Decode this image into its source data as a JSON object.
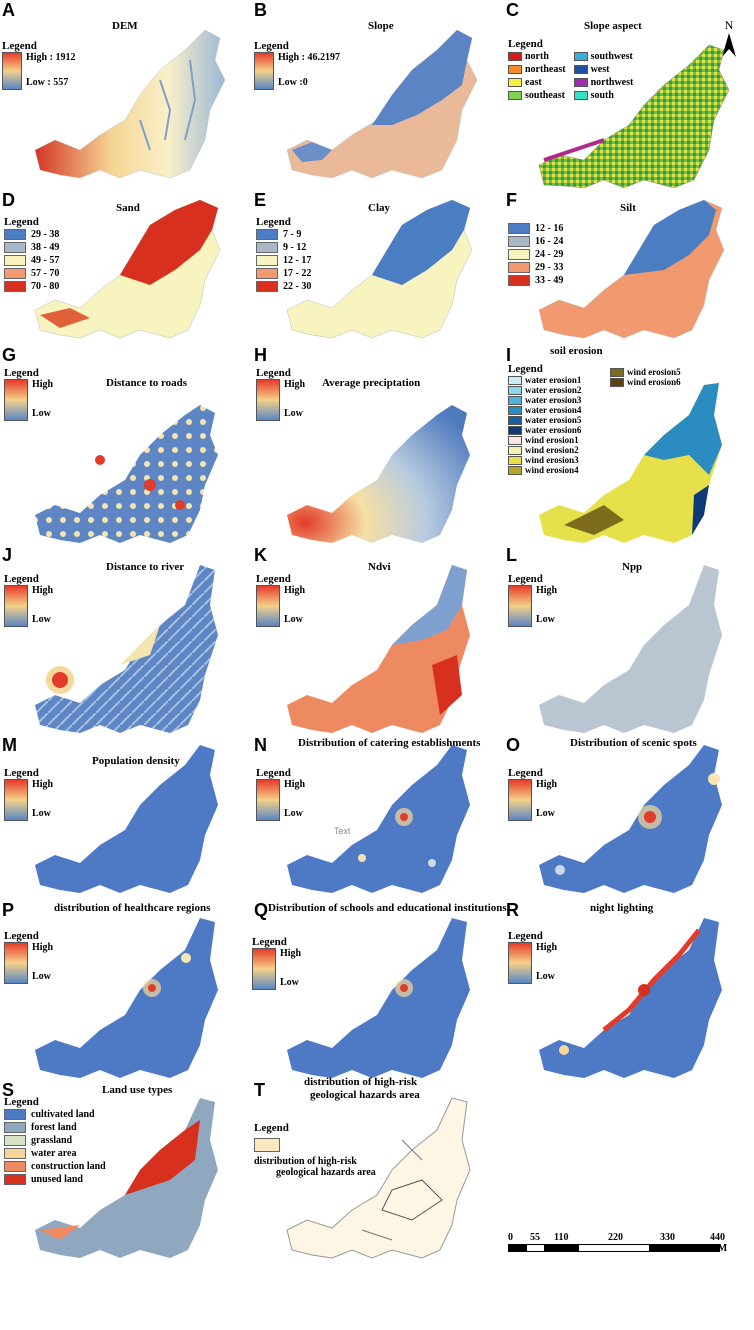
{
  "panels": {
    "A": {
      "letter": "A",
      "title": "DEM",
      "legend": "Legend",
      "high": "High : 1912",
      "low": "Low : 557"
    },
    "B": {
      "letter": "B",
      "title": "Slope",
      "legend": "Legend",
      "high": "High : 46.2197",
      "low": "Low :0"
    },
    "C": {
      "letter": "C",
      "title": "Slope aspect",
      "legend": "Legend",
      "north_label": "N",
      "items": [
        {
          "label": "north",
          "color": "#d7191c"
        },
        {
          "label": "northeast",
          "color": "#f58a2a"
        },
        {
          "label": "east",
          "color": "#f7f040"
        },
        {
          "label": "southeast",
          "color": "#7fd34e"
        },
        {
          "label": "southwest",
          "color": "#3aaed8"
        },
        {
          "label": "west",
          "color": "#1f4fa3"
        },
        {
          "label": "northwest",
          "color": "#9b2fae"
        },
        {
          "label": "south",
          "color": "#35e0c0"
        }
      ]
    },
    "D": {
      "letter": "D",
      "title": "Sand",
      "legend": "Legend",
      "items": [
        {
          "label": "29 - 38",
          "color": "#4a7dc2"
        },
        {
          "label": "38 - 49",
          "color": "#a9b8c8"
        },
        {
          "label": "49 - 57",
          "color": "#f8f4c0"
        },
        {
          "label": "57 - 70",
          "color": "#f19a6f"
        },
        {
          "label": "70 - 80",
          "color": "#d7301f"
        }
      ]
    },
    "E": {
      "letter": "E",
      "title": "Clay",
      "legend": "Legend",
      "items": [
        {
          "label": "7 - 9",
          "color": "#4a7dc2"
        },
        {
          "label": "9 - 12",
          "color": "#a9b8c8"
        },
        {
          "label": "12 - 17",
          "color": "#f8f4c0"
        },
        {
          "label": "17 - 22",
          "color": "#f19a6f"
        },
        {
          "label": "22 - 30",
          "color": "#d7301f"
        }
      ]
    },
    "F": {
      "letter": "F",
      "title": "Silt",
      "legend": "",
      "items": [
        {
          "label": "12 - 16",
          "color": "#4a7dc2"
        },
        {
          "label": "16 - 24",
          "color": "#a9b8c8"
        },
        {
          "label": "24 - 29",
          "color": "#f8f4c0"
        },
        {
          "label": "29 - 33",
          "color": "#f19a6f"
        },
        {
          "label": "33 - 49",
          "color": "#d7301f"
        }
      ]
    },
    "G": {
      "letter": "G",
      "title": "Distance to roads",
      "legend": "Legend",
      "high": "High",
      "low": "Low"
    },
    "H": {
      "letter": "H",
      "title": "Average preciptation",
      "legend": "Legend",
      "high": "High",
      "low": "Low"
    },
    "I": {
      "letter": "I",
      "title": "soil erosion",
      "legend": "Legend",
      "items": [
        {
          "label": "water erosion1",
          "color": "#c9ecf5"
        },
        {
          "label": "water erosion2",
          "color": "#8fd6ea"
        },
        {
          "label": "water erosion3",
          "color": "#4fb3d9"
        },
        {
          "label": "water erosion4",
          "color": "#2a8cc0"
        },
        {
          "label": "water erosion5",
          "color": "#1b5e9c"
        },
        {
          "label": "water erosion6",
          "color": "#0e3b78"
        },
        {
          "label": "wind erosion1",
          "color": "#f7e6e6"
        },
        {
          "label": "wind erosion2",
          "color": "#f5f2b0"
        },
        {
          "label": "wind erosion3",
          "color": "#e6e04a"
        },
        {
          "label": "wind erosion4",
          "color": "#b7a42a"
        }
      ],
      "items_right": [
        {
          "label": "wind erosion5",
          "color": "#7d6b1e"
        },
        {
          "label": "wind erosion6",
          "color": "#5a3f12"
        }
      ]
    },
    "J": {
      "letter": "J",
      "title": "Distance to river",
      "legend": "Legend",
      "high": "High",
      "low": "Low"
    },
    "K": {
      "letter": "K",
      "title": "Ndvi",
      "legend": "Legend",
      "high": "High",
      "low": "Low"
    },
    "L": {
      "letter": "L",
      "title": "Npp",
      "legend": "Legend",
      "high": "High",
      "low": "Low"
    },
    "M": {
      "letter": "M",
      "title": "Population density",
      "legend": "Legend",
      "high": "High",
      "low": "Low"
    },
    "N": {
      "letter": "N",
      "title": "Distribution of catering establishments",
      "legend": "Legend",
      "high": "High",
      "low": "Low",
      "stray_text": "Text"
    },
    "O": {
      "letter": "O",
      "title": "Distribution of scenic spots",
      "legend": "Legend",
      "high": "High",
      "low": "Low"
    },
    "P": {
      "letter": "P",
      "title": "distribution of healthcare regions",
      "legend": "Legend",
      "high": "High",
      "low": "Low"
    },
    "Q": {
      "letter": "Q",
      "title": "Distribution of schools and educational institutions",
      "legend": "Legend",
      "high": "High",
      "low": "Low"
    },
    "R": {
      "letter": "R",
      "title": "night lighting",
      "legend": "Legend",
      "high": "High",
      "low": "Low"
    },
    "S": {
      "letter": "S",
      "title": "Land use types",
      "legend": "Legend",
      "items": [
        {
          "label": "cultivated land",
          "color": "#4e79c4"
        },
        {
          "label": "forest land",
          "color": "#8fa8c0"
        },
        {
          "label": "grassland",
          "color": "#d9e3c8"
        },
        {
          "label": "water area",
          "color": "#f6d49a"
        },
        {
          "label": "construction land",
          "color": "#ee8a62"
        },
        {
          "label": "unused land",
          "color": "#d7301f"
        }
      ]
    },
    "T": {
      "letter": "T",
      "title_line1": "distribution of high-risk",
      "title_line2": "geological hazards area",
      "legend": "Legend",
      "item_line1": "distribution of high-risk",
      "item_line2": "geological hazards area",
      "item_color": "#fbe7c0"
    }
  },
  "scale": {
    "ticks": [
      "0",
      "55",
      "110",
      "220",
      "330",
      "440 KM"
    ]
  }
}
